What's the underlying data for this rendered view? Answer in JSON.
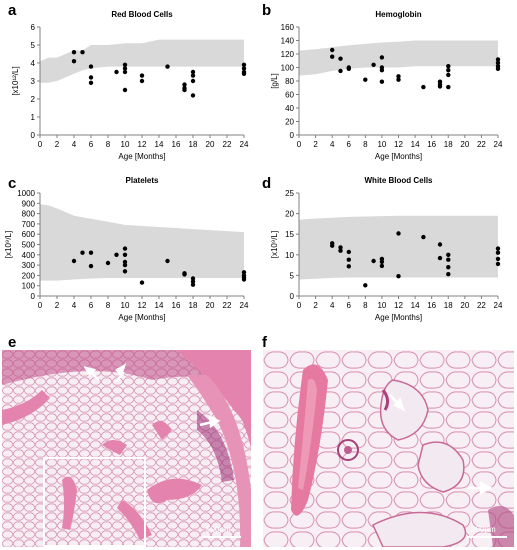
{
  "panels": {
    "a": "a",
    "b": "b",
    "c": "c",
    "d": "d",
    "e": "e",
    "f": "f"
  },
  "chart_data": [
    {
      "id": "a",
      "type": "scatter",
      "title": "Red Blood Cells",
      "xlabel": "Age [Months]",
      "ylabel": "[x10¹²/L]",
      "xlim": [
        0,
        24
      ],
      "ylim": [
        0,
        6
      ],
      "xticks": [
        0,
        2,
        4,
        6,
        8,
        10,
        12,
        14,
        16,
        18,
        20,
        22,
        24
      ],
      "yticks": [
        0,
        1,
        2,
        3,
        4,
        5,
        6
      ],
      "reference_band": {
        "x": [
          0,
          1,
          2,
          4,
          5,
          6,
          8,
          10,
          12,
          14,
          16,
          18,
          20,
          22,
          24
        ],
        "lower": [
          2.9,
          2.9,
          3.0,
          3.4,
          3.6,
          3.7,
          3.8,
          3.8,
          3.8,
          3.8,
          3.8,
          3.8,
          3.8,
          3.8,
          3.8
        ],
        "upper": [
          4.1,
          4.3,
          4.3,
          4.7,
          4.7,
          5.0,
          5.0,
          5.1,
          5.1,
          5.3,
          5.3,
          5.3,
          5.3,
          5.3,
          5.3
        ]
      },
      "points": [
        [
          4,
          4.6
        ],
        [
          4,
          4.1
        ],
        [
          5,
          4.6
        ],
        [
          6,
          3.8
        ],
        [
          6,
          3.2
        ],
        [
          6,
          2.9
        ],
        [
          9,
          3.5
        ],
        [
          10,
          3.9
        ],
        [
          10,
          3.5
        ],
        [
          10,
          3.7
        ],
        [
          10,
          2.5
        ],
        [
          12,
          3.3
        ],
        [
          12,
          3.0
        ],
        [
          15,
          3.8
        ],
        [
          17,
          2.8
        ],
        [
          17,
          2.6
        ],
        [
          17,
          2.5
        ],
        [
          18,
          3.5
        ],
        [
          18,
          3.3
        ],
        [
          18,
          3.0
        ],
        [
          18,
          2.2
        ],
        [
          24,
          3.9
        ],
        [
          24,
          3.7
        ],
        [
          24,
          3.5
        ],
        [
          24,
          3.4
        ]
      ]
    },
    {
      "id": "b",
      "type": "scatter",
      "title": "Hemoglobin",
      "xlabel": "Age [Months]",
      "ylabel": "[g/L]",
      "xlim": [
        0,
        24
      ],
      "ylim": [
        0,
        160
      ],
      "xticks": [
        0,
        2,
        4,
        6,
        8,
        10,
        12,
        14,
        16,
        18,
        20,
        22,
        24
      ],
      "yticks": [
        0,
        20,
        40,
        60,
        80,
        100,
        120,
        140,
        160
      ],
      "reference_band": {
        "x": [
          0,
          2,
          4,
          6,
          8,
          10,
          12,
          14,
          16,
          18,
          20,
          22,
          24
        ],
        "lower": [
          88,
          90,
          95,
          98,
          100,
          100,
          100,
          102,
          102,
          102,
          102,
          102,
          102
        ],
        "upper": [
          125,
          127,
          130,
          133,
          135,
          137,
          138,
          140,
          140,
          140,
          140,
          140,
          140
        ]
      },
      "points": [
        [
          4,
          126
        ],
        [
          4,
          116
        ],
        [
          5,
          113
        ],
        [
          5,
          95
        ],
        [
          6,
          100
        ],
        [
          6,
          98
        ],
        [
          8,
          82
        ],
        [
          9,
          104
        ],
        [
          10,
          115
        ],
        [
          10,
          100
        ],
        [
          10,
          96
        ],
        [
          10,
          79
        ],
        [
          12,
          87
        ],
        [
          12,
          82
        ],
        [
          15,
          71
        ],
        [
          17,
          79
        ],
        [
          17,
          75
        ],
        [
          17,
          72
        ],
        [
          18,
          102
        ],
        [
          18,
          96
        ],
        [
          18,
          89
        ],
        [
          18,
          71
        ],
        [
          24,
          112
        ],
        [
          24,
          107
        ],
        [
          24,
          102
        ],
        [
          24,
          98
        ]
      ]
    },
    {
      "id": "c",
      "type": "scatter",
      "title": "Platelets",
      "xlabel": "Age [Months]",
      "ylabel": "[x10⁹/L]",
      "xlim": [
        0,
        24
      ],
      "ylim": [
        0,
        1000
      ],
      "xticks": [
        0,
        2,
        4,
        6,
        8,
        10,
        12,
        14,
        16,
        18,
        20,
        22,
        24
      ],
      "yticks": [
        0,
        100,
        200,
        300,
        400,
        500,
        600,
        700,
        800,
        900,
        1000
      ],
      "reference_band": {
        "x": [
          0,
          1,
          2,
          4,
          6,
          8,
          10,
          12,
          14,
          16,
          18,
          20,
          22,
          24
        ],
        "lower": [
          150,
          150,
          150,
          160,
          170,
          175,
          175,
          175,
          175,
          175,
          175,
          175,
          175,
          175
        ],
        "upper": [
          890,
          880,
          850,
          780,
          750,
          720,
          690,
          680,
          670,
          660,
          650,
          640,
          630,
          620
        ]
      },
      "points": [
        [
          4,
          340
        ],
        [
          5,
          420
        ],
        [
          6,
          420
        ],
        [
          6,
          290
        ],
        [
          8,
          320
        ],
        [
          9,
          400
        ],
        [
          10,
          460
        ],
        [
          10,
          400
        ],
        [
          10,
          330
        ],
        [
          10,
          300
        ],
        [
          10,
          240
        ],
        [
          12,
          130
        ],
        [
          15,
          340
        ],
        [
          17,
          220
        ],
        [
          17,
          210
        ],
        [
          18,
          170
        ],
        [
          18,
          140
        ],
        [
          18,
          110
        ],
        [
          24,
          230
        ],
        [
          24,
          200
        ],
        [
          24,
          180
        ],
        [
          24,
          160
        ]
      ]
    },
    {
      "id": "d",
      "type": "scatter",
      "title": "White Blood Cells",
      "xlabel": "Age [Months]",
      "ylabel": "[x10⁹/L]",
      "xlim": [
        0,
        24
      ],
      "ylim": [
        0,
        25
      ],
      "xticks": [
        0,
        2,
        4,
        6,
        8,
        10,
        12,
        14,
        16,
        18,
        20,
        22,
        24
      ],
      "yticks": [
        0,
        5,
        10,
        15,
        20,
        25
      ],
      "reference_band": {
        "x": [
          0,
          2,
          4,
          6,
          8,
          10,
          12,
          14,
          16,
          18,
          20,
          22,
          24
        ],
        "lower": [
          4.0,
          4.2,
          4.4,
          4.5,
          4.5,
          4.5,
          4.5,
          4.5,
          4.5,
          4.5,
          4.5,
          4.5,
          4.5
        ],
        "upper": [
          18.5,
          18.8,
          19.0,
          19.2,
          19.3,
          19.4,
          19.5,
          19.5,
          19.5,
          19.5,
          19.5,
          19.5,
          19.5
        ]
      },
      "points": [
        [
          4,
          12.8
        ],
        [
          4,
          12.2
        ],
        [
          5,
          11.8
        ],
        [
          5,
          11.0
        ],
        [
          6,
          10.7
        ],
        [
          6,
          8.8
        ],
        [
          6,
          7.2
        ],
        [
          8,
          2.6
        ],
        [
          9,
          8.5
        ],
        [
          10,
          9.0
        ],
        [
          10,
          8.3
        ],
        [
          10,
          7.3
        ],
        [
          12,
          15.2
        ],
        [
          12,
          4.8
        ],
        [
          15,
          14.3
        ],
        [
          17,
          12.5
        ],
        [
          17,
          9.2
        ],
        [
          18,
          10.0
        ],
        [
          18,
          8.8
        ],
        [
          18,
          7.0
        ],
        [
          18,
          5.3
        ],
        [
          24,
          11.5
        ],
        [
          24,
          10.5
        ],
        [
          24,
          9.0
        ],
        [
          24,
          7.8
        ]
      ]
    }
  ],
  "histology": {
    "e": {
      "scale_label": "500µm"
    },
    "f": {
      "scale_label": "200µm"
    }
  },
  "colors": {
    "band": "#d9d9d9",
    "point": "#000000",
    "axis": "#808080",
    "stain_pink": "#e07fa6",
    "stain_dark": "#8a2c6a",
    "fat_bg": "#f3e8ef"
  }
}
